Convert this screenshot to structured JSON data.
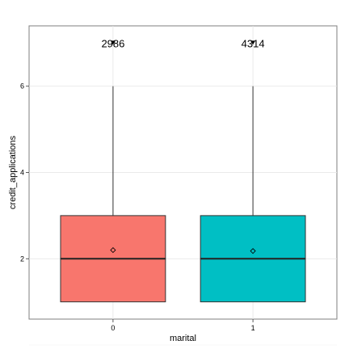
{
  "chart_data": {
    "type": "box",
    "xlabel": "marital",
    "ylabel": "credit_applications",
    "categories": [
      "0",
      "1"
    ],
    "ylim": [
      0.6,
      7.4
    ],
    "yticks": [
      2,
      4,
      6
    ],
    "grid": true,
    "legend": "none",
    "boxes": [
      {
        "category": "0",
        "whisker_low": 1,
        "q1": 1,
        "median": 2,
        "q3": 3,
        "whisker_high": 6,
        "mean": 2.2,
        "count_label": "2986",
        "label_y": 7,
        "color": "#F8766D"
      },
      {
        "category": "1",
        "whisker_low": 1,
        "q1": 1,
        "median": 2,
        "q3": 3,
        "whisker_high": 6,
        "mean": 2.18,
        "count_label": "4314",
        "label_y": 7,
        "color": "#00BFC4"
      }
    ]
  }
}
